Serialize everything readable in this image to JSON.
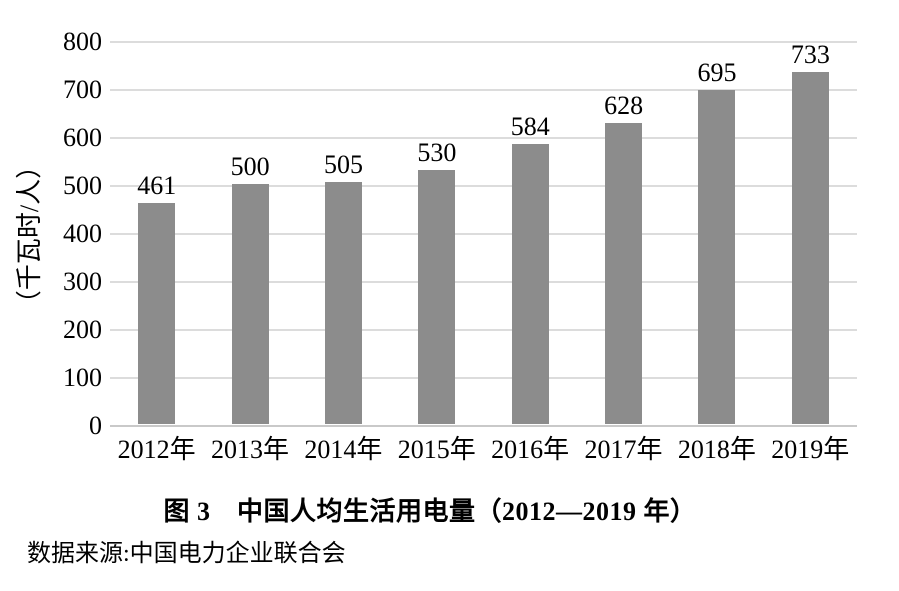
{
  "figure": {
    "caption": "图 3　中国人均生活用电量（2012—2019 年）",
    "source": "数据来源:中国电力企业联合会"
  },
  "chart_data": {
    "type": "bar",
    "categories": [
      "2012年",
      "2013年",
      "2014年",
      "2015年",
      "2016年",
      "2017年",
      "2018年",
      "2019年"
    ],
    "values": [
      461,
      500,
      505,
      530,
      584,
      628,
      695,
      733
    ],
    "title": "图 3　中国人均生活用电量（2012—2019 年）",
    "xlabel": "",
    "ylabel": "（千瓦时/人）",
    "ylim": [
      0,
      800
    ],
    "ytick_step": 100,
    "grid": true,
    "legend": "none",
    "data_labels": true,
    "colors": {
      "bar": "#8c8c8c",
      "gridline": "#dcdcdc",
      "baseline": "#c9c9c9",
      "text": "#000000",
      "background": "#ffffff"
    }
  }
}
